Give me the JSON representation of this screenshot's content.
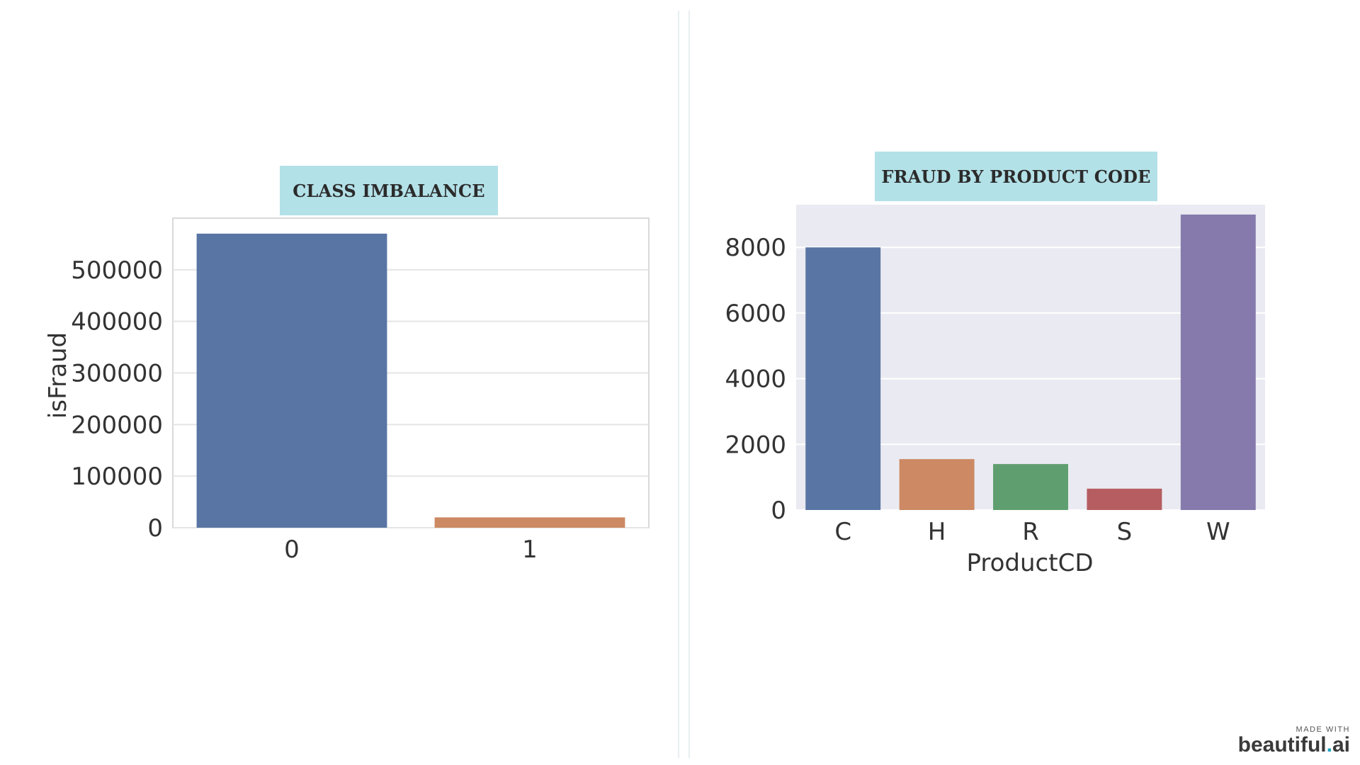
{
  "watermark": {
    "made_with": "MADE WITH",
    "brand_main": "beautiful",
    "brand_dot": ".",
    "brand_ext": "ai"
  },
  "colors": {
    "title_badge_bg": "#b3e1e8",
    "bar_blue": "#5975a4",
    "bar_orange": "#cc8963",
    "bar_green": "#5f9e6e",
    "bar_red": "#b55d60",
    "bar_purple": "#857aab",
    "right_plot_bg": "#eaeaf2"
  },
  "chart_data": [
    {
      "type": "bar",
      "title": "CLASS IMBALANCE",
      "xlabel": "",
      "ylabel": "isFraud",
      "categories": [
        "0",
        "1"
      ],
      "values": [
        570000,
        20000
      ],
      "ylim": [
        0,
        600000
      ],
      "yticks": [
        "0",
        "100000",
        "200000",
        "300000",
        "400000",
        "500000"
      ],
      "grid": true,
      "legend": "none"
    },
    {
      "type": "bar",
      "title": "FRAUD BY PRODUCT CODE",
      "xlabel": "ProductCD",
      "ylabel": "",
      "categories": [
        "C",
        "H",
        "R",
        "S",
        "W"
      ],
      "values": [
        8000,
        1550,
        1400,
        650,
        9000
      ],
      "ylim": [
        0,
        9300
      ],
      "yticks": [
        "0",
        "2000",
        "4000",
        "6000",
        "8000"
      ],
      "grid": true,
      "legend": "none"
    }
  ]
}
